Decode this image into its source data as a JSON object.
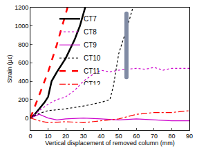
{
  "chart_data": {
    "type": "line",
    "x_label": "Vertical displacement of removed column (mm)",
    "y_label": "Strain (με)",
    "xlim": [
      0,
      90
    ],
    "xticks": [
      0,
      10,
      20,
      30,
      40,
      50,
      60,
      70,
      80,
      90
    ],
    "ylim": [
      -130,
      1200
    ],
    "yticks": [
      0,
      200,
      400,
      600,
      800,
      1000,
      1200
    ],
    "legend": "top",
    "series": [
      {
        "name": "CT7",
        "color": "#000000",
        "line_style": "solid",
        "x": [
          0,
          2,
          5,
          8,
          10,
          12,
          15,
          20,
          25,
          28,
          31
        ],
        "values": [
          0,
          30,
          100,
          170,
          230,
          400,
          500,
          650,
          850,
          1000,
          1200
        ]
      },
      {
        "name": "CT8",
        "color": "#cc00cc",
        "line_style": "dot",
        "x": [
          0,
          5,
          10,
          15,
          20,
          25,
          30,
          35,
          40,
          45,
          50,
          55,
          60,
          65,
          70,
          75,
          80,
          90
        ],
        "values": [
          0,
          80,
          150,
          200,
          230,
          300,
          400,
          470,
          520,
          500,
          520,
          530,
          540,
          530,
          550,
          520,
          540,
          540
        ]
      },
      {
        "name": "CT9",
        "color": "#cc00cc",
        "line_style": "solid",
        "x": [
          0,
          5,
          10,
          15,
          20,
          30,
          40,
          50,
          60,
          70,
          80,
          90
        ],
        "values": [
          0,
          40,
          0,
          -20,
          -10,
          0,
          -10,
          -20,
          -10,
          -20,
          -30,
          -30
        ]
      },
      {
        "name": "CT10",
        "color": "#000000",
        "line_style": "dot",
        "x": [
          0,
          5,
          10,
          20,
          30,
          40,
          45,
          47,
          50,
          55,
          58
        ],
        "values": [
          0,
          50,
          80,
          100,
          130,
          170,
          200,
          350,
          700,
          1000,
          1200
        ]
      },
      {
        "name": "CT11",
        "color": "#ff0000",
        "line_style": "dash",
        "x": [
          0,
          3,
          5,
          8,
          10,
          15,
          18,
          21
        ],
        "values": [
          0,
          150,
          250,
          400,
          500,
          800,
          1000,
          1200
        ]
      },
      {
        "name": "CT12",
        "color": "#ff0000",
        "line_style": "dashdot",
        "x": [
          0,
          5,
          10,
          20,
          30,
          40,
          50,
          60,
          70,
          80,
          90
        ],
        "values": [
          0,
          -30,
          -50,
          -40,
          -50,
          -30,
          -10,
          40,
          60,
          60,
          80
        ]
      }
    ]
  }
}
